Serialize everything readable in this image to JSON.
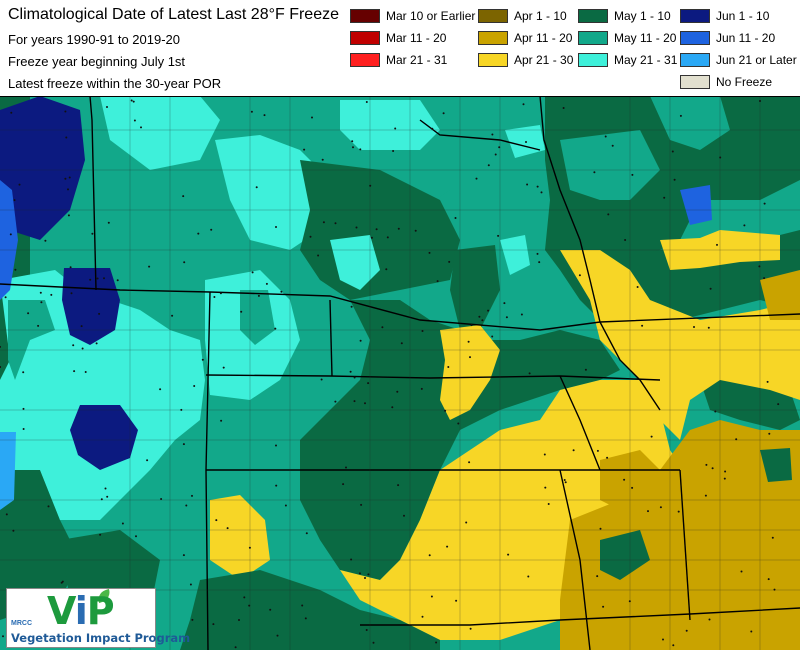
{
  "header": {
    "title": "Climatological Date of Latest Last 28°F Freeze",
    "line2": "For years 1990-91 to 2019-20",
    "line3": "Freeze year beginning July 1st",
    "line4": "Latest freeze within the 30-year POR"
  },
  "legend": [
    {
      "label": "Mar 10 or Earlier",
      "color": "#660000"
    },
    {
      "label": "Mar 11 - 20",
      "color": "#c00000"
    },
    {
      "label": "Mar 21 - 31",
      "color": "#ff2020"
    },
    {
      "label": "Apr 1 - 10",
      "color": "#7c6400"
    },
    {
      "label": "Apr 11 - 20",
      "color": "#c9a300"
    },
    {
      "label": "Apr 21 - 30",
      "color": "#f7d626"
    },
    {
      "label": "May 1 - 10",
      "color": "#0a6a43"
    },
    {
      "label": "May 11 - 20",
      "color": "#12a88a"
    },
    {
      "label": "May 21 - 31",
      "color": "#3ef0da"
    },
    {
      "label": "Jun 1 - 10",
      "color": "#0c1a80"
    },
    {
      "label": "Jun 11 - 20",
      "color": "#1e63e0"
    },
    {
      "label": "Jun 21 or Later",
      "color": "#2aa8f5"
    },
    {
      "label": "No Freeze",
      "color": "#e2e0cf"
    }
  ],
  "logo": {
    "mark_v": "V",
    "mark_i": "i",
    "mark_p": "P",
    "tag": "MRCC",
    "name": "Vegetation Impact Program"
  }
}
